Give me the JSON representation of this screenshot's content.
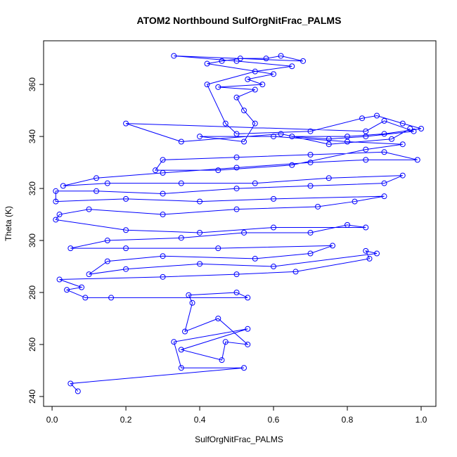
{
  "chart_data": {
    "type": "scatter",
    "connect": true,
    "title": "ATOM2 Northbound SulfOrgNitFrac_PALMS",
    "x_label": "SulfOrgNitFrac_PALMS",
    "y_label": "Theta (K)",
    "xlim": [
      -0.023,
      1.04
    ],
    "ylim": [
      236.2,
      376.8
    ],
    "xticks": [
      {
        "value": 0,
        "label": "0.0"
      },
      0.2,
      0.4,
      0.6,
      0.8,
      {
        "value": 1,
        "label": "1.0"
      }
    ],
    "yticks": [
      240,
      260,
      280,
      300,
      320,
      340,
      360
    ],
    "series": [
      {
        "color": "#0000ff",
        "x": [
          0.07,
          0.05,
          0.52,
          0.35,
          0.33,
          0.53,
          0.35,
          0.46,
          0.47,
          0.53,
          0.45,
          0.36,
          0.38,
          0.37,
          0.5,
          0.53,
          0.16,
          0.09,
          0.04,
          0.08,
          0.02,
          0.3,
          0.5,
          0.66,
          0.86,
          0.85,
          0.88,
          0.6,
          0.4,
          0.2,
          0.1,
          0.15,
          0.3,
          0.55,
          0.7,
          0.76,
          0.45,
          0.2,
          0.05,
          0.15,
          0.35,
          0.52,
          0.7,
          0.8,
          0.85,
          0.6,
          0.4,
          0.2,
          0.01,
          0.02,
          0.1,
          0.3,
          0.5,
          0.72,
          0.82,
          0.9,
          0.6,
          0.4,
          0.2,
          0.01,
          0.01,
          0.12,
          0.3,
          0.5,
          0.7,
          0.9,
          0.95,
          0.75,
          0.55,
          0.35,
          0.15,
          0.03,
          0.12,
          0.3,
          0.5,
          0.7,
          0.85,
          0.99,
          0.9,
          0.7,
          0.5,
          0.3,
          0.28,
          0.45,
          0.65,
          0.85,
          0.95,
          0.8,
          0.6,
          0.4,
          0.52,
          0.55,
          0.52,
          0.5,
          0.55,
          0.45,
          0.57,
          0.53,
          0.6,
          0.42,
          0.46,
          0.51,
          0.58,
          0.62,
          0.68,
          0.33,
          0.5,
          0.65,
          0.55,
          0.42,
          0.47,
          0.5,
          0.7,
          0.84,
          0.88,
          0.95,
          1.0,
          0.9,
          0.8,
          0.65,
          0.75,
          0.85,
          0.98,
          0.9,
          0.85,
          0.2,
          0.35,
          0.62,
          0.75,
          0.92,
          0.97
        ],
        "values": [
          242,
          245,
          251,
          251,
          261,
          266,
          258,
          254,
          261,
          260,
          270,
          265,
          276,
          279,
          280,
          278,
          278,
          278,
          281,
          282,
          285,
          286,
          287,
          288,
          293,
          296,
          295,
          290,
          291,
          289,
          287,
          292,
          294,
          293,
          295,
          298,
          297,
          297,
          297,
          300,
          301,
          303,
          303,
          306,
          305,
          305,
          303,
          304,
          308,
          310,
          312,
          310,
          312,
          313,
          315,
          317,
          316,
          315,
          316,
          315,
          319,
          319,
          318,
          320,
          321,
          322,
          325,
          324,
          322,
          322,
          322,
          321,
          324,
          326,
          328,
          330,
          331,
          331,
          334,
          333,
          332,
          331,
          327,
          327,
          329,
          335,
          337,
          338,
          340,
          340,
          338,
          345,
          350,
          355,
          358,
          359,
          360,
          362,
          364,
          368,
          369,
          370,
          370,
          371,
          369,
          371,
          369,
          367,
          365,
          360,
          345,
          341,
          342,
          347,
          348,
          345,
          343,
          341,
          340,
          340,
          339,
          340,
          342,
          346,
          342,
          345,
          338,
          341,
          337,
          339,
          343
        ]
      }
    ]
  }
}
